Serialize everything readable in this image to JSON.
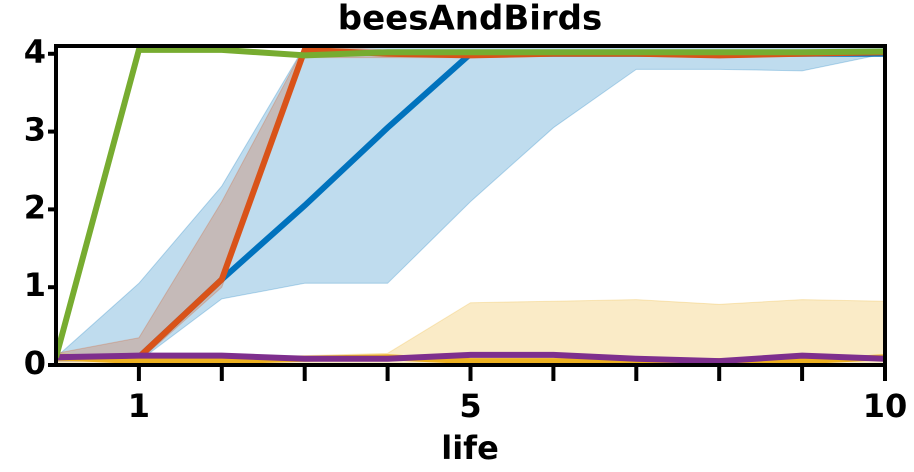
{
  "chart_data": {
    "type": "line",
    "title": "beesAndBirds",
    "xlabel": "life",
    "x": [
      0,
      1,
      2,
      3,
      4,
      5,
      6,
      7,
      8,
      9,
      10
    ],
    "xlim": [
      0,
      10
    ],
    "ylim": [
      0,
      4.1
    ],
    "xticks": [
      1,
      5,
      10
    ],
    "minor_xticks": [
      2,
      3,
      4,
      6,
      7,
      8,
      9
    ],
    "yticks": [
      0,
      1,
      2,
      3,
      4
    ],
    "series": [
      {
        "color": "#0072bd",
        "values": [
          0.1,
          0.1,
          1.1,
          2.05,
          3.05,
          4.0,
          4.0,
          4.0,
          4.0,
          4.0,
          4.0
        ],
        "band_lower": [
          0.05,
          0.05,
          0.85,
          1.05,
          1.05,
          2.1,
          3.05,
          3.8,
          3.8,
          3.78,
          4.0
        ],
        "band_upper": [
          0.1,
          1.05,
          2.3,
          4.1,
          4.1,
          4.1,
          4.1,
          4.1,
          4.1,
          4.1,
          4.1
        ]
      },
      {
        "color": "#d95319",
        "values": [
          0.1,
          0.1,
          1.1,
          4.05,
          4.0,
          3.98,
          4.0,
          4.0,
          3.98,
          4.0,
          4.02
        ],
        "band_lower": [
          0.05,
          0.05,
          1.0,
          3.95,
          3.95,
          3.95,
          3.97,
          3.97,
          3.95,
          3.97,
          3.99
        ],
        "band_upper": [
          0.15,
          0.35,
          2.1,
          4.1,
          4.05,
          4.02,
          4.03,
          4.03,
          4.02,
          4.03,
          4.05
        ]
      },
      {
        "color": "#edb120",
        "values": [
          0.1,
          0.05,
          0.05,
          0.08,
          0.1,
          0.05,
          0.05,
          0.05,
          0.05,
          0.05,
          0.1
        ],
        "band_lower": [
          0,
          0,
          0,
          0,
          0,
          0,
          0,
          0,
          0,
          0,
          0
        ],
        "band_upper": [
          0.15,
          0.1,
          0.1,
          0.12,
          0.15,
          0.8,
          0.82,
          0.84,
          0.78,
          0.84,
          0.82
        ]
      },
      {
        "color": "#7e2f8e",
        "values": [
          0.1,
          0.12,
          0.12,
          0.08,
          0.08,
          0.13,
          0.13,
          0.08,
          0.05,
          0.12,
          0.08
        ]
      },
      {
        "color": "#77ac30",
        "values": [
          0.1,
          4.05,
          4.05,
          3.98,
          4.02,
          4.02,
          4.02,
          4.02,
          4.02,
          4.02,
          4.03
        ]
      }
    ]
  }
}
